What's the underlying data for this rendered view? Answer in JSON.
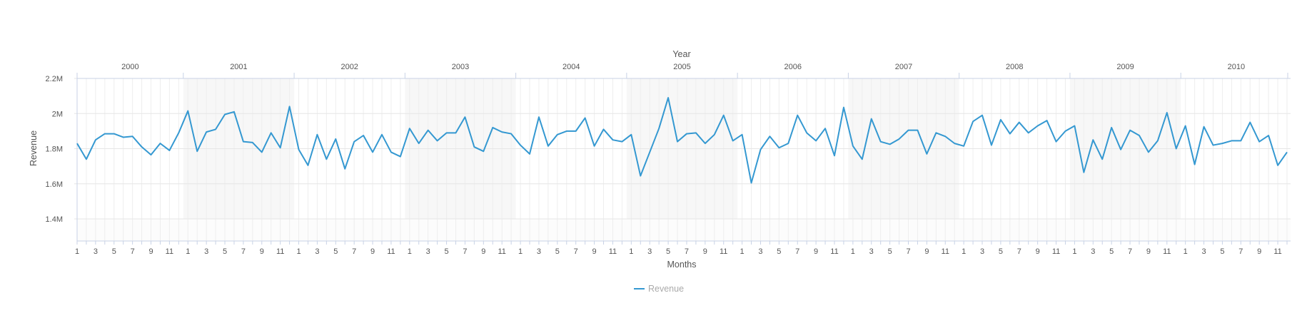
{
  "chart_data": {
    "type": "line",
    "title": "",
    "xlabel": "Months",
    "x2label": "Year",
    "ylabel": "Revenue",
    "ylim": [
      1300000,
      2200000
    ],
    "y_ticks": [
      1400000,
      1600000,
      1800000,
      2000000,
      2200000
    ],
    "y_tick_labels": [
      "1.4M",
      "1.6M",
      "1.8M",
      "2M",
      "2.2M"
    ],
    "years": [
      "2000",
      "2001",
      "2002",
      "2003",
      "2004",
      "2005",
      "2006",
      "2007",
      "2008",
      "2009",
      "2010"
    ],
    "month_tick_labels": [
      "1",
      "3",
      "5",
      "7",
      "9",
      "11"
    ],
    "shaded_years": [
      "2001",
      "2003",
      "2005",
      "2007",
      "2009"
    ],
    "grid": true,
    "legend_position": "bottom-center",
    "colors": {
      "line": "#3498d1",
      "grid": "#e6e6e6",
      "axis": "#c8d2e6",
      "band": "#f7f7f7"
    },
    "series": [
      {
        "name": "Revenue",
        "values": [
          1830000,
          1740000,
          1850000,
          1885000,
          1885000,
          1865000,
          1870000,
          1810000,
          1765000,
          1830000,
          1790000,
          1890000,
          2015000,
          1785000,
          1895000,
          1910000,
          1995000,
          2010000,
          1840000,
          1835000,
          1780000,
          1890000,
          1805000,
          2040000,
          1795000,
          1705000,
          1880000,
          1740000,
          1855000,
          1685000,
          1840000,
          1875000,
          1780000,
          1880000,
          1780000,
          1755000,
          1915000,
          1830000,
          1905000,
          1845000,
          1890000,
          1890000,
          1980000,
          1810000,
          1785000,
          1920000,
          1895000,
          1885000,
          1820000,
          1770000,
          1980000,
          1815000,
          1880000,
          1900000,
          1900000,
          1975000,
          1815000,
          1910000,
          1850000,
          1840000,
          1880000,
          1645000,
          1780000,
          1915000,
          2090000,
          1840000,
          1885000,
          1890000,
          1830000,
          1880000,
          1990000,
          1845000,
          1880000,
          1605000,
          1795000,
          1870000,
          1805000,
          1830000,
          1990000,
          1890000,
          1845000,
          1915000,
          1760000,
          2035000,
          1815000,
          1740000,
          1970000,
          1840000,
          1825000,
          1855000,
          1905000,
          1905000,
          1770000,
          1890000,
          1870000,
          1830000,
          1815000,
          1955000,
          1990000,
          1820000,
          1965000,
          1885000,
          1950000,
          1890000,
          1930000,
          1960000,
          1840000,
          1900000,
          1930000,
          1665000,
          1850000,
          1740000,
          1920000,
          1795000,
          1905000,
          1875000,
          1780000,
          1845000,
          2005000,
          1800000,
          1930000,
          1710000,
          1925000,
          1820000,
          1830000,
          1845000,
          1845000,
          1950000,
          1840000,
          1875000,
          1705000,
          1780000
        ]
      }
    ]
  }
}
